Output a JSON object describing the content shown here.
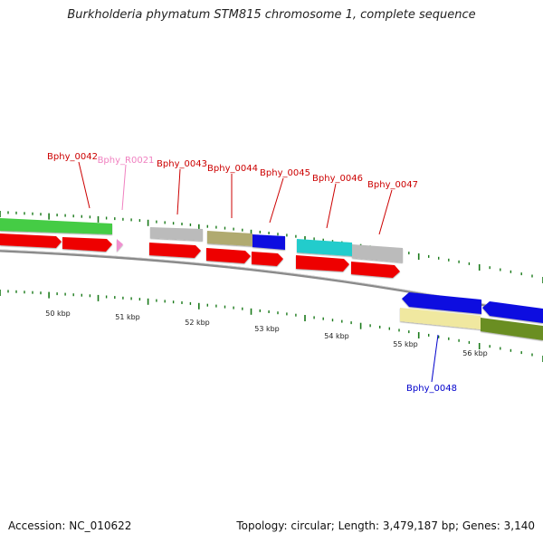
{
  "title": "Burkholderia phymatum STM815 chromosome 1, complete sequence",
  "footer": {
    "accession_text": "Accession: NC_010622",
    "summary_text": "Topology: circular; Length: 3,479,187 bp; Genes: 3,140"
  },
  "colors": {
    "backbone": "#8a8a8a",
    "tick": "#1a7a1a",
    "label_red": "#cc0000",
    "label_pink": "#f080c0",
    "label_blue": "#0000cc"
  },
  "kbp_ticks": [
    "50 kbp",
    "51 kbp",
    "52 kbp",
    "53 kbp",
    "54 kbp",
    "55 kbp",
    "56 kbp"
  ],
  "cog_genes": [
    {
      "name": "cog-gene-1",
      "color": "#44cc44",
      "row": "outer"
    },
    {
      "name": "cog-gene-2",
      "color": "#bbbbbb",
      "row": "outer"
    },
    {
      "name": "cog-gene-3",
      "color": "#b0aa70",
      "row": "outer"
    },
    {
      "name": "cog-gene-4",
      "color": "#1010e0",
      "row": "outer"
    },
    {
      "name": "cog-gene-5",
      "color": "#22cccc",
      "row": "outer"
    },
    {
      "name": "cog-gene-6",
      "color": "#bbbbbb",
      "row": "outer"
    },
    {
      "name": "cog-gene-7",
      "color": "#f0e8a0",
      "row": "inner"
    },
    {
      "name": "cog-gene-8",
      "color": "#6b8e23",
      "row": "inner"
    }
  ],
  "gene_labels": [
    {
      "text": "Bphy_0042",
      "color": "#cc0000"
    },
    {
      "text": "Bphy_R0021",
      "color": "#f080c0"
    },
    {
      "text": "Bphy_0043",
      "color": "#cc0000"
    },
    {
      "text": "Bphy_0044",
      "color": "#cc0000"
    },
    {
      "text": "Bphy_0045",
      "color": "#cc0000"
    },
    {
      "text": "Bphy_0046",
      "color": "#cc0000"
    },
    {
      "text": "Bphy_0047",
      "color": "#cc0000"
    },
    {
      "text": "Bphy_0048",
      "color": "#0000cc"
    }
  ]
}
